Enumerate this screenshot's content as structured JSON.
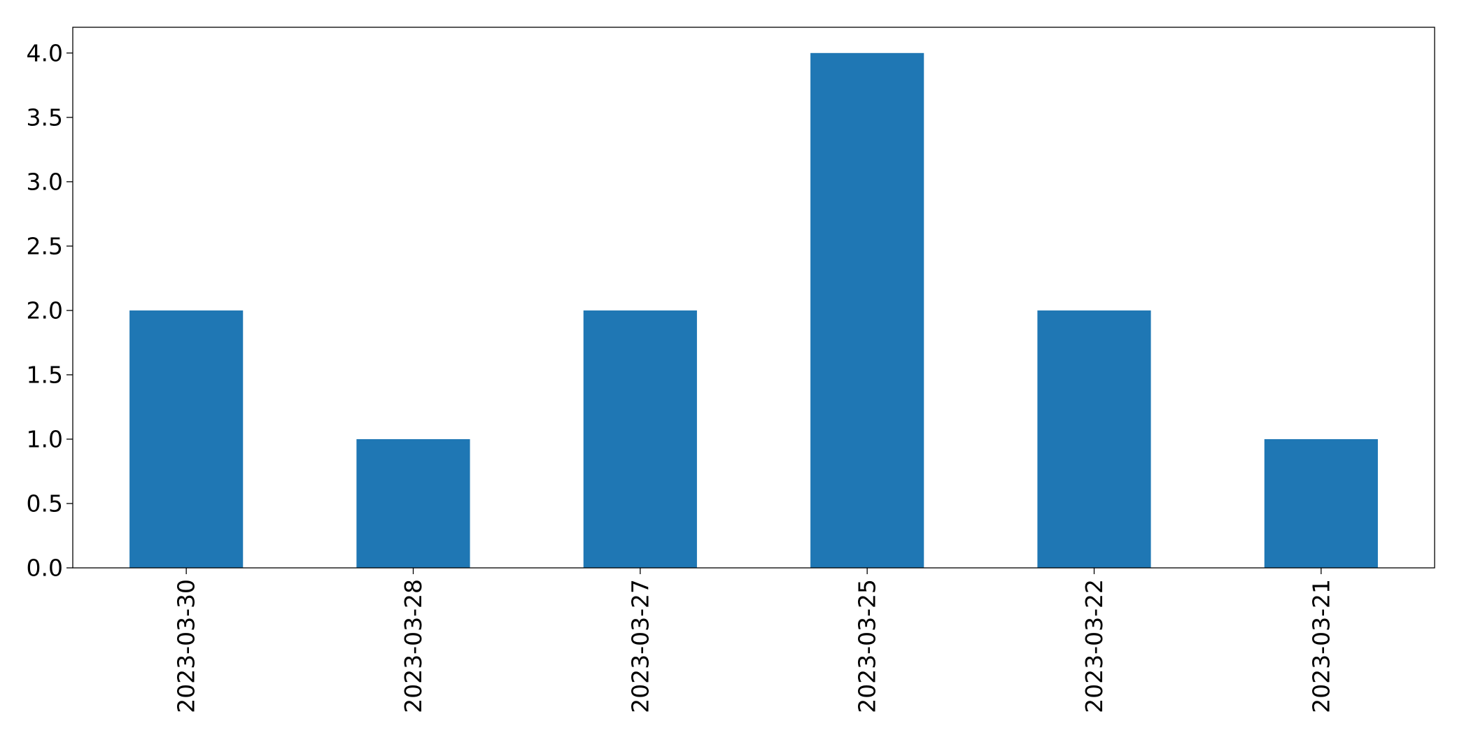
{
  "chart_data": {
    "type": "bar",
    "categories": [
      "2023-03-30",
      "2023-03-28",
      "2023-03-27",
      "2023-03-25",
      "2023-03-22",
      "2023-03-21"
    ],
    "values": [
      2,
      1,
      2,
      4,
      2,
      1
    ],
    "ylim": [
      0,
      4.2
    ],
    "yticks": [
      "0.0",
      "0.5",
      "1.0",
      "1.5",
      "2.0",
      "2.5",
      "3.0",
      "3.5",
      "4.0"
    ],
    "title": "",
    "xlabel": "",
    "ylabel": "",
    "grid": false,
    "legend": false,
    "bar_color": "#1f77b4"
  }
}
